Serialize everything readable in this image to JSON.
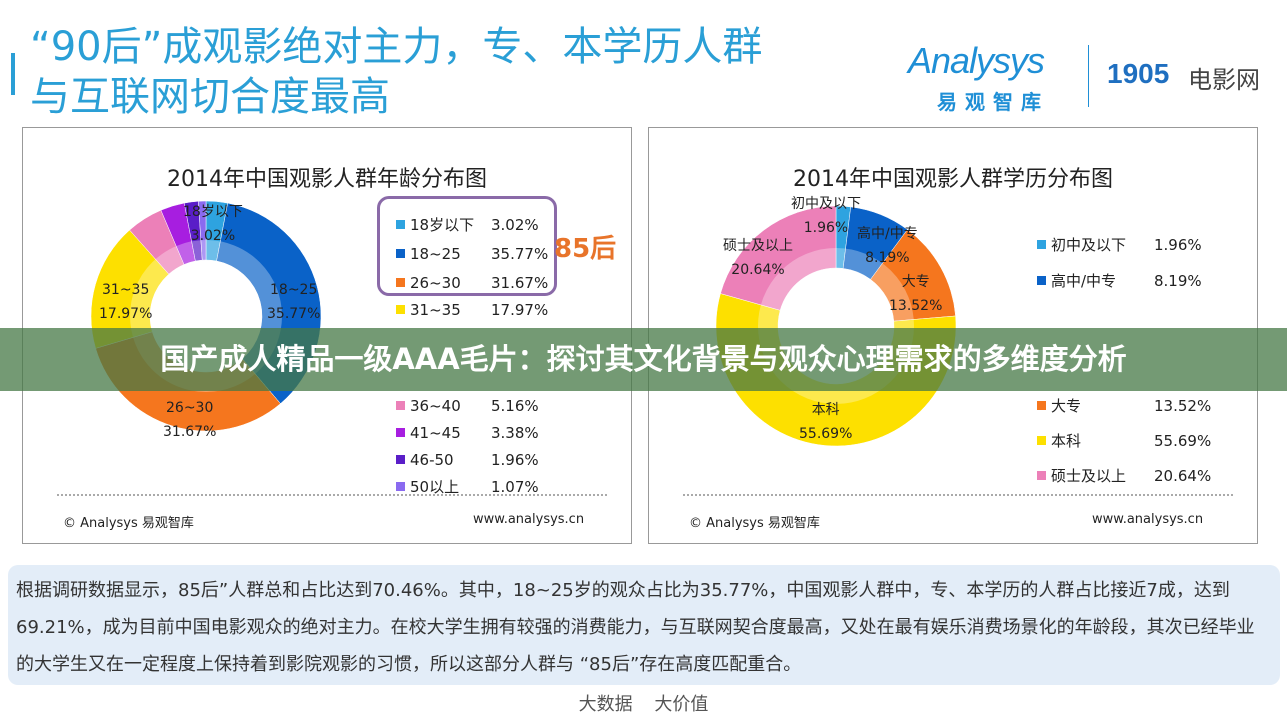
{
  "header": {
    "title_line1": "“90后”成观影绝对主力，专、本学历人群",
    "title_line2": "与互联网切合度最高",
    "logo_analysys": "Analysys",
    "logo_analysys_cn": "易观智库",
    "logo_1905_num": "1905",
    "logo_1905_cn": "电影网"
  },
  "banner": "国产成人精品一级AAA毛片：探讨其文化背景与观众心理需求的多维度分析",
  "chart_data": [
    {
      "type": "pie",
      "title": "2014年中国观影人群年龄分布图",
      "categories": [
        "18岁以下",
        "18~25",
        "26~30",
        "31~35",
        "36~40",
        "41~45",
        "46-50",
        "50以上"
      ],
      "values": [
        3.02,
        35.77,
        31.67,
        17.97,
        5.16,
        3.38,
        1.96,
        1.07
      ],
      "value_labels": [
        "3.02%",
        "35.77%",
        "31.67%",
        "17.97%",
        "5.16%",
        "3.38%",
        "1.96%",
        "1.07%"
      ],
      "colors": [
        "#2ea3e0",
        "#0a62c8",
        "#f5761e",
        "#fde000",
        "#ec80b8",
        "#a71ee0",
        "#5a1ec8",
        "#8a6af0"
      ],
      "legend": "right",
      "annotation": "85后",
      "source": "© Analysys 易观智库",
      "url": "www.analysys.cn"
    },
    {
      "type": "pie",
      "title": "2014年中国观影人群学历分布图",
      "categories": [
        "初中及以下",
        "高中/中专",
        "大专",
        "本科",
        "硕士及以上"
      ],
      "values": [
        1.96,
        8.19,
        13.52,
        55.69,
        20.64
      ],
      "value_labels": [
        "1.96%",
        "8.19%",
        "13.52%",
        "55.69%",
        "20.64%"
      ],
      "colors": [
        "#2ea3e0",
        "#0a62c8",
        "#f5761e",
        "#fde000",
        "#ec80b8"
      ],
      "legend": "right",
      "source": "© Analysys 易观智库",
      "url": "www.analysys.cn"
    }
  ],
  "description": "根据调研数据显示，85后”人群总和占比达到70.46%。其中，18~25岁的观众占比为35.77%，中国观影人群中，专、本学历的人群占比接近7成，达到69.21%，成为目前中国电影观众的绝对主力。在校大学生拥有较强的消费能力，与互联网契合度最高，又处在最有娱乐消费场景化的年龄段，其次已经毕业的大学生又在一定程度上保持着到影院观影的习惯，所以这部分人群与 “85后”存在高度匹配重合。",
  "tagline": "大数据 大价值"
}
